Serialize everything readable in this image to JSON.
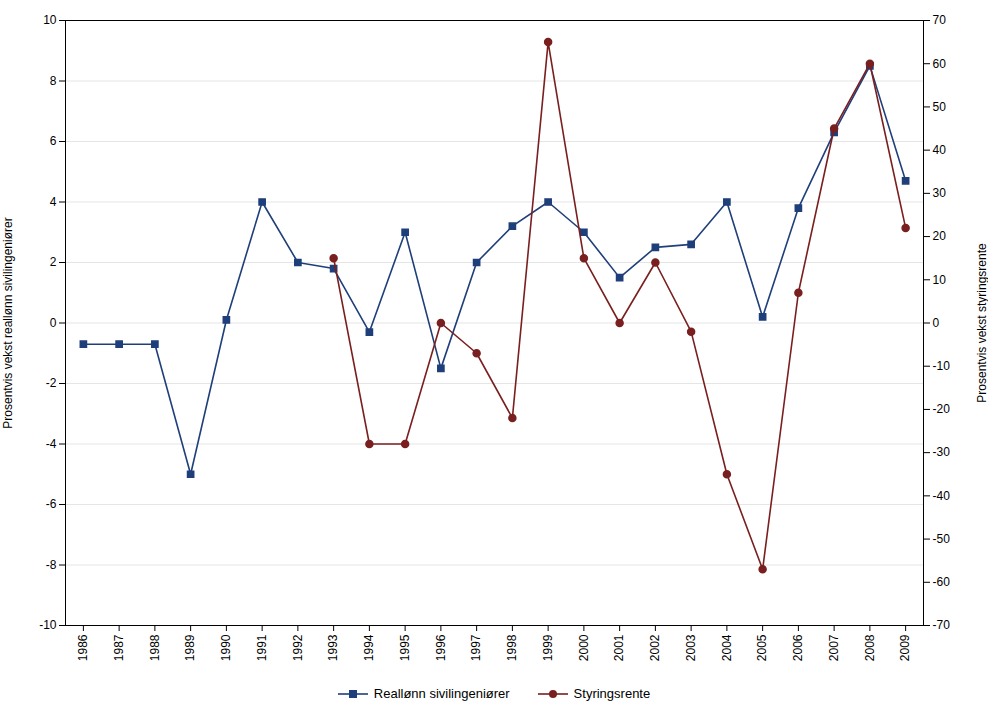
{
  "chart_data": {
    "type": "line",
    "ylabel": "Prosentvis vekst reallønn sivilingeniører",
    "y2label": "Prosentvis vekst styringsrente",
    "x": [
      1986,
      1987,
      1988,
      1989,
      1990,
      1991,
      1992,
      1993,
      1994,
      1995,
      1996,
      1997,
      1998,
      1999,
      2000,
      2001,
      2002,
      2003,
      2004,
      2005,
      2006,
      2007,
      2008,
      2009
    ],
    "series": [
      {
        "name": "Reallønn sivilingeniører",
        "color": "#1f3f7a",
        "marker": "square",
        "axis": "y",
        "values": [
          -0.7,
          -0.7,
          -0.7,
          -5.0,
          0.1,
          4.0,
          2.0,
          1.8,
          -0.3,
          3.0,
          -1.5,
          2.0,
          3.2,
          4.0,
          3.0,
          1.5,
          2.5,
          2.6,
          4.0,
          0.2,
          3.8,
          6.3,
          8.5,
          4.7
        ]
      },
      {
        "name": "Styringsrente",
        "color": "#7a1f1f",
        "marker": "circle",
        "axis": "y2",
        "values": [
          null,
          null,
          null,
          null,
          null,
          null,
          null,
          15.0,
          -28.0,
          -28.0,
          0.0,
          -7.0,
          -22.0,
          65.0,
          15.0,
          0.0,
          14.0,
          -2.0,
          -35.0,
          -57.0,
          7.0,
          45.0,
          60.0,
          22.0
        ]
      }
    ],
    "xlim": [
      1985.5,
      2009.5
    ],
    "xticks": [
      1986,
      1987,
      1988,
      1989,
      1990,
      1991,
      1992,
      1993,
      1994,
      1995,
      1996,
      1997,
      1998,
      1999,
      2000,
      2001,
      2002,
      2003,
      2004,
      2005,
      2006,
      2007,
      2008,
      2009
    ],
    "ylim": [
      -10,
      10
    ],
    "yticks": [
      -10,
      -8,
      -6,
      -4,
      -2,
      0,
      2,
      4,
      6,
      8,
      10
    ],
    "y2lim": [
      -70,
      70
    ],
    "y2ticks": [
      -70,
      -60,
      -50,
      -40,
      -30,
      -20,
      -10,
      0,
      10,
      20,
      30,
      40,
      50,
      60,
      70
    ],
    "grid": true,
    "legend": "bottom"
  }
}
